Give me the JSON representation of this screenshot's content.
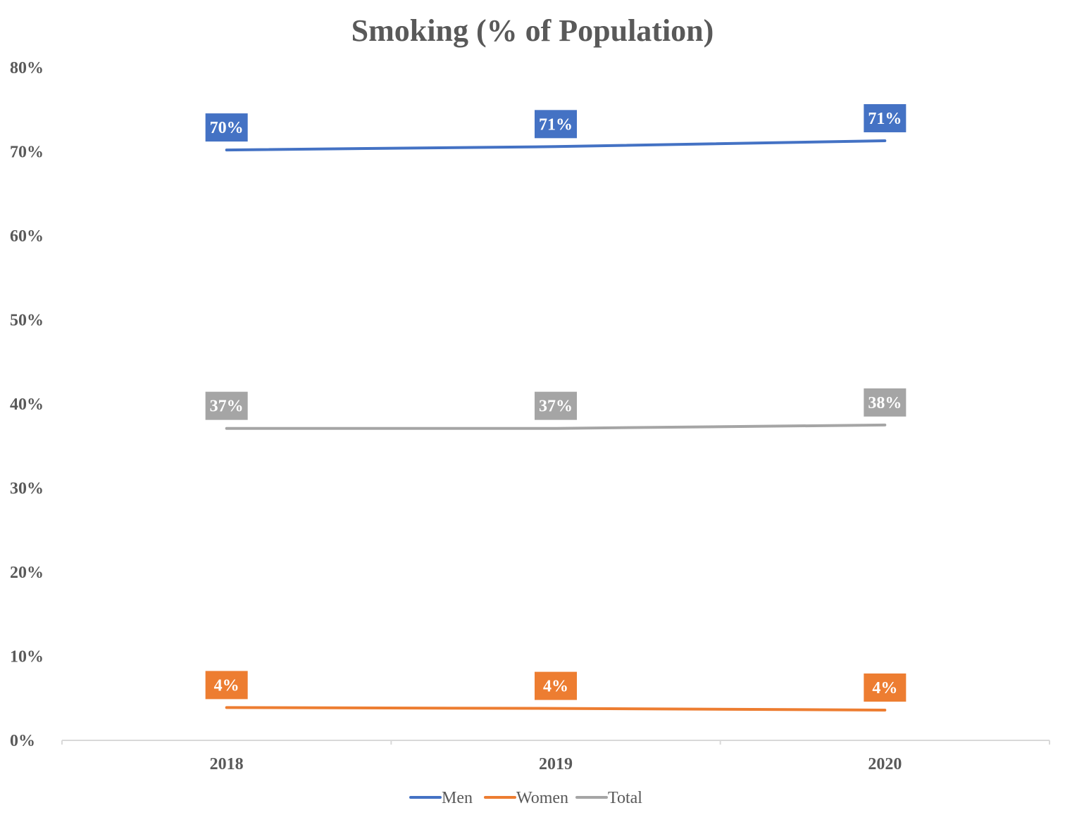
{
  "chart_data": {
    "type": "line",
    "title": "Smoking (% of Population)",
    "xlabel": "",
    "ylabel": "",
    "categories": [
      "2018",
      "2019",
      "2020"
    ],
    "ylim": [
      0,
      80
    ],
    "yticks": [
      "0%",
      "10%",
      "20%",
      "30%",
      "40%",
      "50%",
      "60%",
      "70%",
      "80%"
    ],
    "grid": false,
    "legend_position": "bottom",
    "series": [
      {
        "name": "Men",
        "color": "#4472C4",
        "values": [
          70.2,
          70.6,
          71.3
        ],
        "labels": [
          "70%",
          "71%",
          "71%"
        ]
      },
      {
        "name": "Women",
        "color": "#ED7D31",
        "values": [
          3.9,
          3.8,
          3.6
        ],
        "labels": [
          "4%",
          "4%",
          "4%"
        ]
      },
      {
        "name": "Total",
        "color": "#A5A5A5",
        "values": [
          37.1,
          37.1,
          37.5
        ],
        "labels": [
          "37%",
          "37%",
          "38%"
        ]
      }
    ]
  }
}
